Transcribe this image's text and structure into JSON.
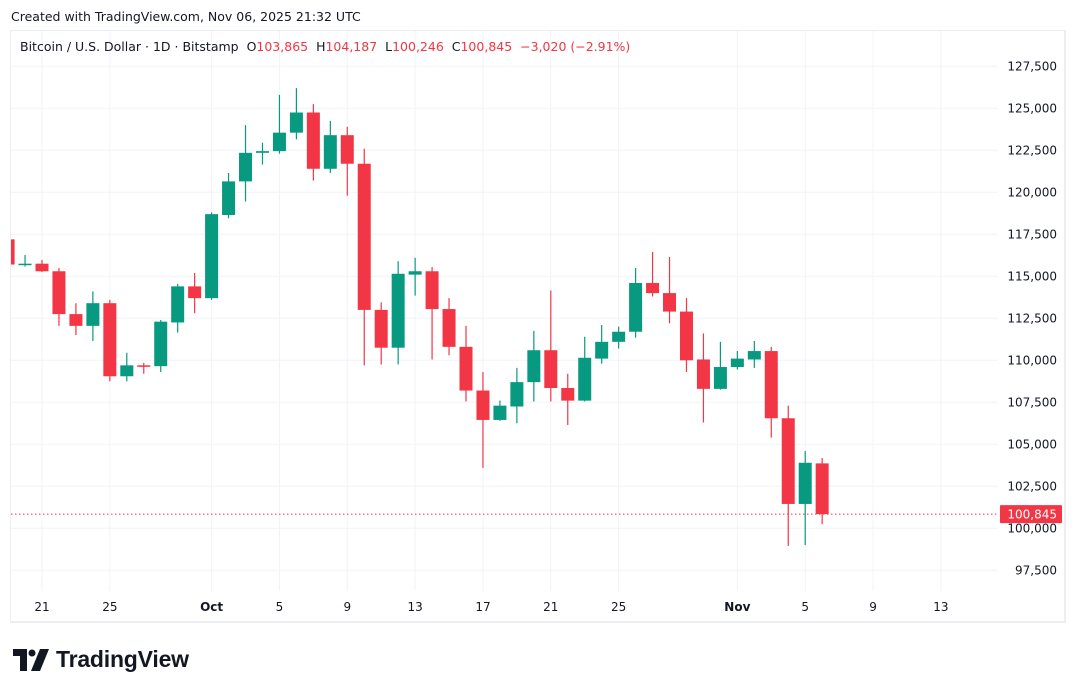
{
  "header": {
    "created": "Created with TradingView.com, Nov 06, 2025 21:32 UTC"
  },
  "legend": {
    "symbol": "Bitcoin / U.S. Dollar · 1D · Bitstamp",
    "o_label": "O",
    "o": "103,865",
    "h_label": "H",
    "h": "104,187",
    "l_label": "L",
    "l": "100,246",
    "c_label": "C",
    "c": "100,845",
    "change": "−3,020 (−2.91%)"
  },
  "footer": {
    "logo_text": "TradingView"
  },
  "colors": {
    "up": "#089981",
    "down": "#f23645",
    "grid": "#f0f3fa",
    "text": "#131722"
  },
  "chart_data": {
    "type": "candlestick",
    "title": "Bitcoin / U.S. Dollar · 1D · Bitstamp",
    "ylim": [
      96000,
      129000
    ],
    "grid": true,
    "y_ticks": [
      97500,
      100000,
      102500,
      105000,
      107500,
      110000,
      112500,
      115000,
      117500,
      120000,
      122500,
      125000,
      127500
    ],
    "y_tick_labels": [
      "97,500",
      "100,000",
      "102,500",
      "105,000",
      "107,500",
      "110,000",
      "112,500",
      "115,000",
      "117,500",
      "120,000",
      "122,500",
      "125,000",
      "127,500"
    ],
    "x_ticks": [
      {
        "date": "2025-09-21",
        "label": "21",
        "bold": false
      },
      {
        "date": "2025-09-25",
        "label": "25",
        "bold": false
      },
      {
        "date": "2025-10-01",
        "label": "Oct",
        "bold": true
      },
      {
        "date": "2025-10-05",
        "label": "5",
        "bold": false
      },
      {
        "date": "2025-10-09",
        "label": "9",
        "bold": false
      },
      {
        "date": "2025-10-13",
        "label": "13",
        "bold": false
      },
      {
        "date": "2025-10-17",
        "label": "17",
        "bold": false
      },
      {
        "date": "2025-10-21",
        "label": "21",
        "bold": false
      },
      {
        "date": "2025-10-25",
        "label": "25",
        "bold": false
      },
      {
        "date": "2025-11-01",
        "label": "Nov",
        "bold": true
      },
      {
        "date": "2025-11-05",
        "label": "5",
        "bold": false
      },
      {
        "date": "2025-11-09",
        "label": "9",
        "bold": false
      },
      {
        "date": "2025-11-13",
        "label": "13",
        "bold": false
      }
    ],
    "last_price": 100845,
    "last_price_label": "100,845",
    "columns": [
      "date",
      "open",
      "high",
      "low",
      "close"
    ],
    "candles": [
      [
        "2025-09-19",
        117200,
        117300,
        115600,
        115700
      ],
      [
        "2025-09-20",
        115700,
        116270,
        115580,
        115750
      ],
      [
        "2025-09-21",
        115750,
        115970,
        115260,
        115300
      ],
      [
        "2025-09-22",
        115300,
        115500,
        112050,
        112750
      ],
      [
        "2025-09-23",
        112750,
        113400,
        111500,
        112050
      ],
      [
        "2025-09-24",
        112050,
        114100,
        111150,
        113400
      ],
      [
        "2025-09-25",
        113400,
        113600,
        108750,
        109050
      ],
      [
        "2025-09-26",
        109050,
        110450,
        108750,
        109700
      ],
      [
        "2025-09-27",
        109700,
        109850,
        109200,
        109650
      ],
      [
        "2025-09-28",
        109650,
        112400,
        109300,
        112300
      ],
      [
        "2025-09-29",
        112250,
        114550,
        111650,
        114400
      ],
      [
        "2025-09-30",
        114400,
        115200,
        112800,
        113700
      ],
      [
        "2025-10-01",
        113700,
        118800,
        113600,
        118700
      ],
      [
        "2025-10-02",
        118650,
        121150,
        118450,
        120650
      ],
      [
        "2025-10-03",
        120650,
        124000,
        119450,
        122350
      ],
      [
        "2025-10-04",
        122350,
        122950,
        121650,
        122450
      ],
      [
        "2025-10-05",
        122450,
        125800,
        122300,
        123550
      ],
      [
        "2025-10-06",
        123550,
        126200,
        123150,
        124750
      ],
      [
        "2025-10-07",
        124750,
        125250,
        120700,
        121400
      ],
      [
        "2025-10-08",
        121400,
        124250,
        121150,
        123400
      ],
      [
        "2025-10-09",
        123400,
        123900,
        119800,
        121700
      ],
      [
        "2025-10-10",
        121700,
        122600,
        109700,
        113000
      ],
      [
        "2025-10-11",
        113000,
        113450,
        109750,
        110750
      ],
      [
        "2025-10-12",
        110750,
        115900,
        109750,
        115150
      ],
      [
        "2025-10-13",
        115100,
        116100,
        113850,
        115300
      ],
      [
        "2025-10-14",
        115300,
        115550,
        110050,
        113050
      ],
      [
        "2025-10-15",
        113050,
        113700,
        110300,
        110800
      ],
      [
        "2025-10-16",
        110800,
        112050,
        107550,
        108200
      ],
      [
        "2025-10-17",
        108200,
        109300,
        103600,
        106450
      ],
      [
        "2025-10-18",
        106450,
        107600,
        106400,
        107300
      ],
      [
        "2025-10-19",
        107250,
        109550,
        106250,
        108700
      ],
      [
        "2025-10-20",
        108700,
        111750,
        107550,
        110600
      ],
      [
        "2025-10-21",
        110600,
        114150,
        107550,
        108350
      ],
      [
        "2025-10-22",
        108350,
        109200,
        106150,
        107600
      ],
      [
        "2025-10-23",
        107600,
        111400,
        107550,
        110150
      ],
      [
        "2025-10-24",
        110100,
        112100,
        109800,
        111100
      ],
      [
        "2025-10-25",
        111100,
        112000,
        110700,
        111700
      ],
      [
        "2025-10-26",
        111700,
        115500,
        111350,
        114600
      ],
      [
        "2025-10-27",
        114600,
        116450,
        113800,
        114000
      ],
      [
        "2025-10-28",
        114000,
        116150,
        112200,
        112900
      ],
      [
        "2025-10-29",
        112900,
        113700,
        109300,
        110000
      ],
      [
        "2025-10-30",
        110050,
        111600,
        106300,
        108300
      ],
      [
        "2025-10-31",
        108300,
        111100,
        108250,
        109600
      ],
      [
        "2025-11-01",
        109600,
        110550,
        109450,
        110100
      ],
      [
        "2025-11-02",
        110050,
        111150,
        109550,
        110550
      ],
      [
        "2025-11-03",
        110550,
        110800,
        105400,
        106550
      ],
      [
        "2025-11-04",
        106550,
        107300,
        98950,
        101450
      ],
      [
        "2025-11-05",
        101450,
        104600,
        99000,
        103900
      ],
      [
        "2025-11-06",
        103865,
        104187,
        100246,
        100845
      ]
    ]
  }
}
